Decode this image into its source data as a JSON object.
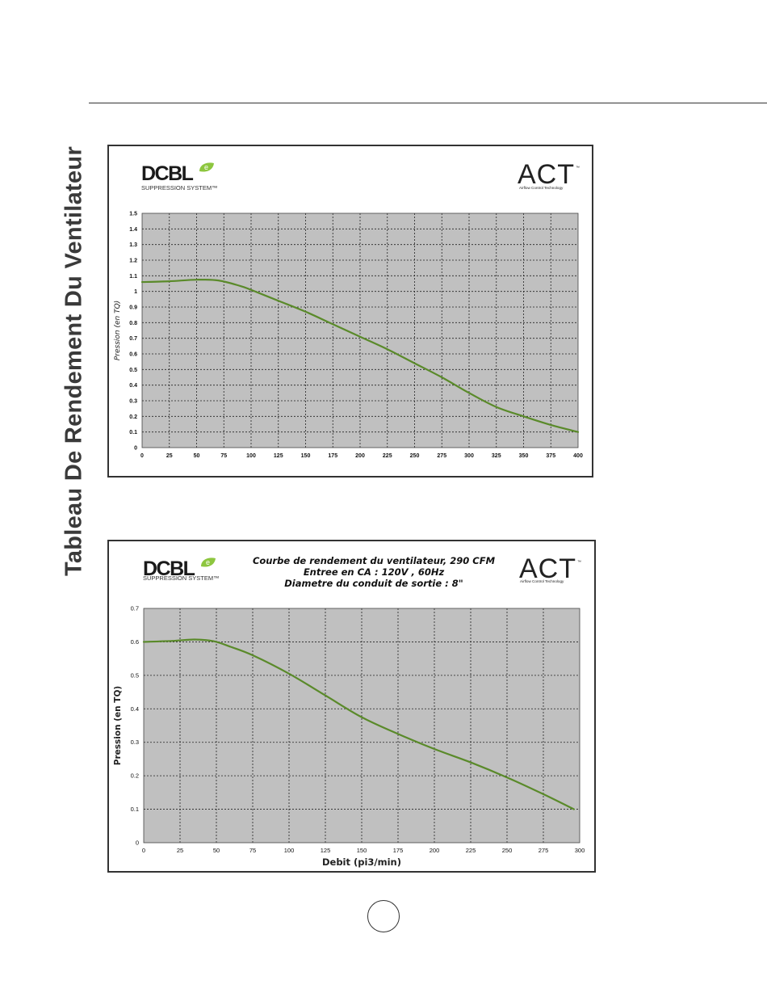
{
  "page": {
    "side_title": "Tableau De Rendement Du Ventilateur",
    "page_number": ""
  },
  "logos": {
    "brand_main": "DCBL",
    "brand_leaf_letter": "e",
    "brand_sub": "SUPPRESSION SYSTEM™",
    "act_main": "ACT",
    "act_sub": "Airflow Control Technology",
    "act_tm": "™"
  },
  "colors": {
    "curve": "#5a8a2a",
    "plot_bg": "#c0c0c0",
    "grid": "#222222",
    "leaf_green": "#8dc63f",
    "frame": "#333333"
  },
  "chart_data": [
    {
      "type": "line",
      "title": "",
      "xlabel": "",
      "ylabel": "Pression (en TQ)",
      "xlim": [
        0,
        400
      ],
      "ylim": [
        0,
        1.5
      ],
      "x_ticks": [
        "0",
        "25",
        "50",
        "75",
        "100",
        "125",
        "150",
        "175",
        "200",
        "225",
        "250",
        "275",
        "300",
        "325",
        "350",
        "375",
        "400"
      ],
      "y_ticks": [
        "0",
        "0.1",
        "0.2",
        "0.3",
        "0.4",
        "0.5",
        "0.6",
        "0.7",
        "0.8",
        "0.9",
        "1",
        "1.1",
        "1.2",
        "1.3",
        "1.4",
        "1.5"
      ],
      "grid": true,
      "series": [
        {
          "points": [
            [
              0,
              1.06
            ],
            [
              25,
              1.065
            ],
            [
              50,
              1.075
            ],
            [
              70,
              1.07
            ],
            [
              90,
              1.035
            ],
            [
              100,
              1.01
            ],
            [
              125,
              0.94
            ],
            [
              150,
              0.87
            ],
            [
              175,
              0.79
            ],
            [
              200,
              0.71
            ],
            [
              225,
              0.63
            ],
            [
              250,
              0.54
            ],
            [
              275,
              0.45
            ],
            [
              300,
              0.35
            ],
            [
              325,
              0.26
            ],
            [
              350,
              0.2
            ],
            [
              375,
              0.145
            ],
            [
              400,
              0.1
            ]
          ]
        }
      ]
    },
    {
      "type": "line",
      "title": "Courbe de rendement du ventilateur, 290 CFM",
      "subtitle_lines": [
        "Entree en CA : 120V , 60Hz",
        "Diametre du conduit de sortie : 8\""
      ],
      "xlabel": "Debit (pi3/min)",
      "ylabel": "Pression (en TQ)",
      "xlim": [
        0,
        300
      ],
      "ylim": [
        0,
        0.7
      ],
      "x_ticks": [
        "0",
        "25",
        "50",
        "75",
        "100",
        "125",
        "150",
        "175",
        "200",
        "225",
        "250",
        "275",
        "300"
      ],
      "y_ticks": [
        "0",
        "0.1",
        "0.2",
        "0.3",
        "0.4",
        "0.5",
        "0.6",
        "0.7"
      ],
      "grid": true,
      "series": [
        {
          "points": [
            [
              0,
              0.6
            ],
            [
              20,
              0.603
            ],
            [
              35,
              0.607
            ],
            [
              48,
              0.602
            ],
            [
              60,
              0.585
            ],
            [
              75,
              0.56
            ],
            [
              100,
              0.505
            ],
            [
              125,
              0.44
            ],
            [
              150,
              0.375
            ],
            [
              175,
              0.325
            ],
            [
              200,
              0.28
            ],
            [
              225,
              0.24
            ],
            [
              250,
              0.195
            ],
            [
              275,
              0.145
            ],
            [
              296,
              0.1
            ]
          ]
        }
      ]
    }
  ]
}
